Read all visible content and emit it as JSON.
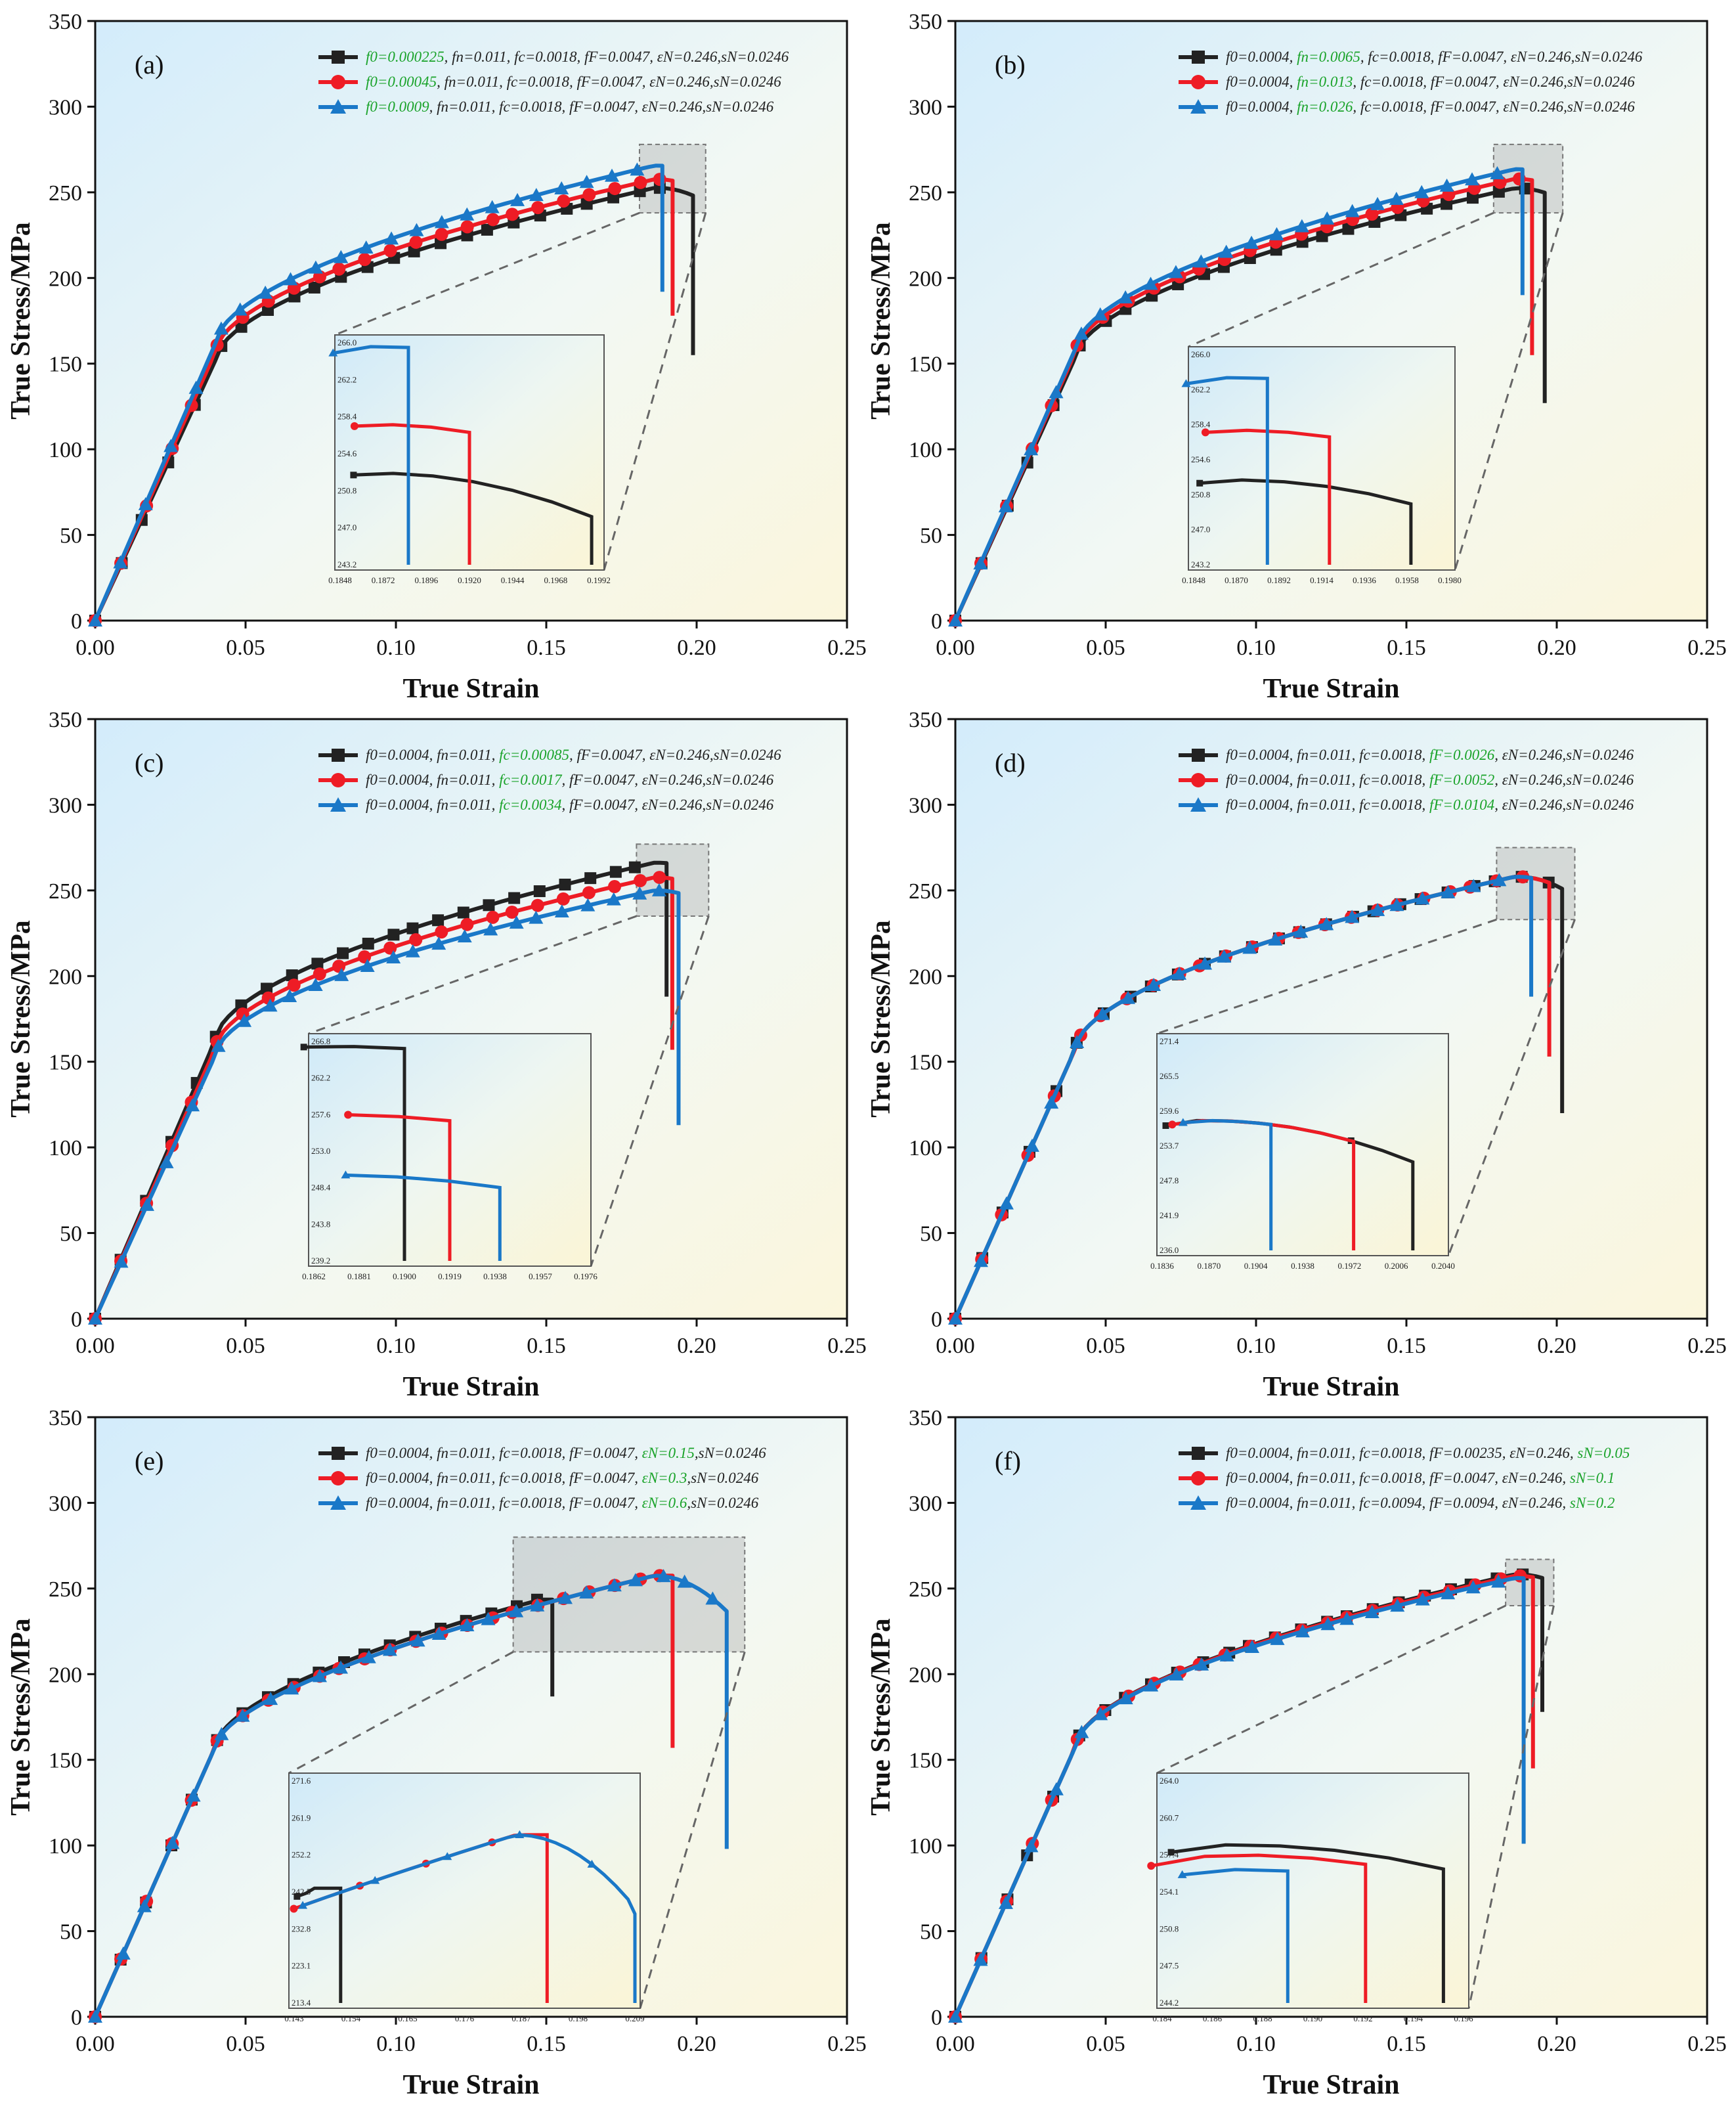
{
  "chart_data": [
    {
      "type": "line",
      "panel_label": "(a)",
      "xlabel": "True Strain",
      "ylabel": "True Stress/MPa",
      "xlim": [
        0,
        0.25
      ],
      "ylim": [
        0,
        350
      ],
      "xticks": [
        "0.00",
        "0.05",
        "0.10",
        "0.15",
        "0.20",
        "0.25"
      ],
      "yticks": [
        "0",
        "50",
        "100",
        "150",
        "200",
        "250",
        "300",
        "350"
      ],
      "zoom_box": {
        "x": [
          0.181,
          0.203
        ],
        "y": [
          238,
          278
        ]
      },
      "series": [
        {
          "name": "f0=0.000225",
          "legend_parts": [
            "f0=0.000225",
            ", fn=0.011, fc=0.0018, fF=0.0047, εN=0.246,sN=0.0246"
          ],
          "highlight": 0,
          "color": "#222222",
          "marker": "square",
          "yield": 152,
          "peak": 252.6,
          "fracture": 0.1988,
          "drop": 155
        },
        {
          "name": "f0=0.00045",
          "legend_parts": [
            "f0=0.00045",
            ", fn=0.011, fc=0.0018, fF=0.0047, εN=0.246,sN=0.0246"
          ],
          "highlight": 0,
          "color": "#ee1c25",
          "marker": "circle",
          "yield": 157,
          "peak": 257.6,
          "fracture": 0.192,
          "drop": 178
        },
        {
          "name": "f0=0.0009",
          "legend_parts": [
            "f0=0.0009",
            ", fn=0.011, fc=0.0018, fF=0.0047, εN=0.246,sN=0.0246"
          ],
          "highlight": 0,
          "color": "#1a78c8",
          "marker": "triangle",
          "yield": 162,
          "peak": 265.6,
          "fracture": 0.1886,
          "drop": 192
        }
      ],
      "inset": {
        "xticks": [
          "0.1848",
          "0.1872",
          "0.1896",
          "0.1920",
          "0.1944",
          "0.1968",
          "0.1992"
        ],
        "yticks": [
          "266.0",
          "262.2",
          "258.4",
          "254.6",
          "250.8",
          "247.0",
          "243.2"
        ]
      }
    },
    {
      "type": "line",
      "panel_label": "(b)",
      "xlabel": "True Strain",
      "ylabel": "True Stress/MPa",
      "xlim": [
        0,
        0.25
      ],
      "ylim": [
        0,
        350
      ],
      "xticks": [
        "0.00",
        "0.05",
        "0.10",
        "0.15",
        "0.20",
        "0.25"
      ],
      "yticks": [
        "0",
        "50",
        "100",
        "150",
        "200",
        "250",
        "300",
        "350"
      ],
      "zoom_box": {
        "x": [
          0.179,
          0.202
        ],
        "y": [
          238,
          278
        ]
      },
      "series": [
        {
          "name": "fn=0.0065",
          "legend_parts": [
            "f0=0.0004, ",
            "fn=0.0065",
            ", fc=0.0018, fF=0.0047, εN=0.246,sN=0.0246"
          ],
          "highlight": 1,
          "color": "#222222",
          "marker": "square",
          "yield": 154,
          "peak": 252.4,
          "fracture": 0.196,
          "drop": 127
        },
        {
          "name": "fn=0.013",
          "legend_parts": [
            "f0=0.0004, ",
            "fn=0.013",
            ", fc=0.0018, fF=0.0047, εN=0.246,sN=0.0246"
          ],
          "highlight": 1,
          "color": "#ee1c25",
          "marker": "circle",
          "yield": 157,
          "peak": 257.8,
          "fracture": 0.1918,
          "drop": 155
        },
        {
          "name": "fn=0.026",
          "legend_parts": [
            "f0=0.0004, ",
            "fn=0.026",
            ", fc=0.0018, fF=0.0047, εN=0.246,sN=0.0246"
          ],
          "highlight": 1,
          "color": "#1a78c8",
          "marker": "triangle",
          "yield": 159,
          "peak": 263.5,
          "fracture": 0.1886,
          "drop": 190
        }
      ],
      "inset": {
        "xticks": [
          "0.1848",
          "0.1870",
          "0.1892",
          "0.1914",
          "0.1936",
          "0.1958",
          "0.1980"
        ],
        "yticks": [
          "266.0",
          "262.2",
          "258.4",
          "254.6",
          "250.8",
          "247.0",
          "243.2"
        ]
      }
    },
    {
      "type": "line",
      "panel_label": "(c)",
      "xlabel": "True Strain",
      "ylabel": "True Stress/MPa",
      "xlim": [
        0,
        0.25
      ],
      "ylim": [
        0,
        350
      ],
      "xticks": [
        "0.00",
        "0.05",
        "0.10",
        "0.15",
        "0.20",
        "0.25"
      ],
      "yticks": [
        "0",
        "50",
        "100",
        "150",
        "200",
        "250",
        "300",
        "350"
      ],
      "zoom_box": {
        "x": [
          0.18,
          0.204
        ],
        "y": [
          235,
          277
        ]
      },
      "series": [
        {
          "name": "fc=0.00085",
          "legend_parts": [
            "f0=0.0004, fn=0.011, ",
            "fc=0.00085",
            ", fF=0.0047, εN=0.246,sN=0.0246"
          ],
          "highlight": 1,
          "color": "#222222",
          "marker": "square",
          "yield": 163,
          "peak": 266.2,
          "fracture": 0.19,
          "drop": 188
        },
        {
          "name": "fc=0.0017",
          "legend_parts": [
            "f0=0.0004, fn=0.011, ",
            "fc=0.0017",
            ", fF=0.0047, εN=0.246,sN=0.0246"
          ],
          "highlight": 1,
          "color": "#ee1c25",
          "marker": "circle",
          "yield": 158,
          "peak": 257.6,
          "fracture": 0.1919,
          "drop": 157
        },
        {
          "name": "fc=0.0034",
          "legend_parts": [
            "f0=0.0004, fn=0.011, ",
            "fc=0.0034",
            ", fF=0.0047, εN=0.246,sN=0.0246"
          ],
          "highlight": 1,
          "color": "#1a78c8",
          "marker": "triangle",
          "yield": 154,
          "peak": 250.0,
          "fracture": 0.194,
          "drop": 113
        }
      ],
      "inset": {
        "xticks": [
          "0.1862",
          "0.1881",
          "0.1900",
          "0.1919",
          "0.1938",
          "0.1957",
          "0.1976"
        ],
        "yticks": [
          "266.8",
          "262.2",
          "257.6",
          "253.0",
          "248.4",
          "243.8",
          "239.2"
        ]
      }
    },
    {
      "type": "line",
      "panel_label": "(d)",
      "xlabel": "True Strain",
      "ylabel": "True Stress/MPa",
      "xlim": [
        0,
        0.25
      ],
      "ylim": [
        0,
        350
      ],
      "xticks": [
        "0.00",
        "0.05",
        "0.10",
        "0.15",
        "0.20",
        "0.25"
      ],
      "yticks": [
        "0",
        "50",
        "100",
        "150",
        "200",
        "250",
        "300",
        "350"
      ],
      "zoom_box": {
        "x": [
          0.18,
          0.206
        ],
        "y": [
          233,
          275
        ]
      },
      "series": [
        {
          "name": "fF=0.0026",
          "legend_parts": [
            "f0=0.0004, fn=0.011, fc=0.0018, ",
            "fF=0.0026",
            ", εN=0.246,sN=0.0246"
          ],
          "highlight": 1,
          "color": "#222222",
          "marker": "square",
          "yield": 158,
          "peak": 258.0,
          "fracture": 0.2018,
          "drop": 120
        },
        {
          "name": "fF=0.0052",
          "legend_parts": [
            "f0=0.0004, fn=0.011, fc=0.0018, ",
            "fF=0.0052",
            ", εN=0.246,sN=0.0246"
          ],
          "highlight": 1,
          "color": "#ee1c25",
          "marker": "circle",
          "yield": 158,
          "peak": 258.0,
          "fracture": 0.1975,
          "drop": 153
        },
        {
          "name": "fF=0.0104",
          "legend_parts": [
            "f0=0.0004, fn=0.011, fc=0.0018, ",
            "fF=0.0104",
            ", εN=0.246,sN=0.0246"
          ],
          "highlight": 1,
          "color": "#1a78c8",
          "marker": "triangle",
          "yield": 158,
          "peak": 258.0,
          "fracture": 0.1915,
          "drop": 188
        }
      ],
      "inset": {
        "xticks": [
          "0.1836",
          "0.1870",
          "0.1904",
          "0.1938",
          "0.1972",
          "0.2006",
          "0.2040"
        ],
        "yticks": [
          "271.4",
          "265.5",
          "259.6",
          "253.7",
          "247.8",
          "241.9",
          "236.0"
        ]
      }
    },
    {
      "type": "line",
      "panel_label": "(e)",
      "xlabel": "True Strain",
      "ylabel": "True Stress/MPa",
      "xlim": [
        0,
        0.25
      ],
      "ylim": [
        0,
        350
      ],
      "xticks": [
        "0.00",
        "0.05",
        "0.10",
        "0.15",
        "0.20",
        "0.25"
      ],
      "yticks": [
        "0",
        "50",
        "100",
        "150",
        "200",
        "250",
        "300",
        "350"
      ],
      "zoom_box": {
        "x": [
          0.139,
          0.216
        ],
        "y": [
          213,
          280
        ]
      },
      "series": [
        {
          "name": "εN=0.15",
          "legend_parts": [
            "f0=0.0004, fn=0.011, fc=0.0018, fF=0.0047, ",
            "εN=0.15",
            ",sN=0.0246"
          ],
          "highlight": 1,
          "color": "#222222",
          "marker": "square",
          "yield": 158,
          "peak": 242.5,
          "fracture": 0.152,
          "drop": 187,
          "shape": "e_short"
        },
        {
          "name": "εN=0.3",
          "legend_parts": [
            "f0=0.0004, fn=0.011, fc=0.0018, fF=0.0047, ",
            "εN=0.3",
            ",sN=0.0246"
          ],
          "highlight": 1,
          "color": "#ee1c25",
          "marker": "circle",
          "yield": 158,
          "peak": 257.5,
          "fracture": 0.192,
          "drop": 157,
          "shape": "e_mid"
        },
        {
          "name": "εN=0.6",
          "legend_parts": [
            "f0=0.0004, fn=0.011, fc=0.0018, fF=0.0047, ",
            "εN=0.6",
            ",sN=0.0246"
          ],
          "highlight": 1,
          "color": "#1a78c8",
          "marker": "triangle",
          "yield": 158,
          "peak": 257.5,
          "fracture": 0.21,
          "drop": 98,
          "shape": "e_long"
        }
      ],
      "inset": {
        "xticks": [
          "0.143",
          "0.154",
          "0.165",
          "0.176",
          "0.187",
          "0.198",
          "0.209"
        ],
        "yticks": [
          "271.6",
          "261.9",
          "252.2",
          "242.5",
          "232.8",
          "223.1",
          "213.4"
        ]
      }
    },
    {
      "type": "line",
      "panel_label": "(f)",
      "xlabel": "True Strain",
      "ylabel": "True Stress/MPa",
      "xlim": [
        0,
        0.25
      ],
      "ylim": [
        0,
        350
      ],
      "xticks": [
        "0.00",
        "0.05",
        "0.10",
        "0.15",
        "0.20",
        "0.25"
      ],
      "yticks": [
        "0",
        "50",
        "100",
        "150",
        "200",
        "250",
        "300",
        "350"
      ],
      "zoom_box": {
        "x": [
          0.183,
          0.199
        ],
        "y": [
          240,
          267
        ]
      },
      "series": [
        {
          "name": "sN=0.05",
          "legend_parts": [
            "f0=0.0004, fn=0.011, fc=0.0018, fF=0.00235, εN=0.246, ",
            "sN=0.05",
            ""
          ],
          "highlight": 1,
          "color": "#222222",
          "marker": "square",
          "yield": 158,
          "peak": 258.3,
          "fracture": 0.1952,
          "drop": 178
        },
        {
          "name": "sN=0.1",
          "legend_parts": [
            "f0=0.0004, fn=0.011, fc=0.0018, fF=0.0047, εN=0.246, ",
            "sN=0.1",
            ""
          ],
          "highlight": 1,
          "color": "#ee1c25",
          "marker": "circle",
          "yield": 158,
          "peak": 257.4,
          "fracture": 0.1921,
          "drop": 145
        },
        {
          "name": "sN=0.2",
          "legend_parts": [
            "f0=0.0004, fn=0.011, fc=0.0094, fF=0.0094, εN=0.246, ",
            "sN=0.2",
            ""
          ],
          "highlight": 1,
          "color": "#1a78c8",
          "marker": "triangle",
          "yield": 158,
          "peak": 256.1,
          "fracture": 0.189,
          "drop": 101
        }
      ],
      "inset": {
        "xticks": [
          "0.184",
          "0.186",
          "0.188",
          "0.190",
          "0.192",
          "0.194",
          "0.196"
        ],
        "yticks": [
          "264.0",
          "260.7",
          "257.4",
          "254.1",
          "250.8",
          "247.5",
          "244.2"
        ]
      }
    }
  ]
}
